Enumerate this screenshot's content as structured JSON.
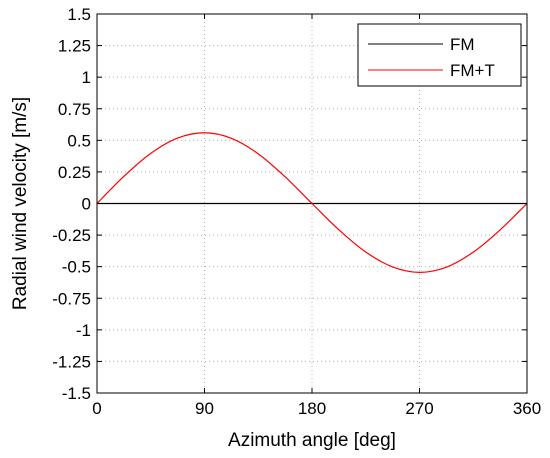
{
  "chart_data": {
    "type": "line",
    "title": "",
    "xlabel": "Azimuth angle [deg]",
    "ylabel": "Radial wind velocity [m/s]",
    "xlim": [
      0,
      360
    ],
    "ylim": [
      -1.5,
      1.5
    ],
    "xticks": [
      0,
      90,
      180,
      270,
      360
    ],
    "xtick_labels": [
      "0",
      "90",
      "180",
      "270",
      "360"
    ],
    "yticks": [
      1.5,
      1.25,
      1,
      0.75,
      0.5,
      0.25,
      0,
      -0.25,
      -0.5,
      -0.75,
      -1,
      -1.25,
      -1.5
    ],
    "ytick_labels": [
      "1.5",
      "1.25",
      "1",
      "0.75",
      "0.5",
      "0.25",
      "0",
      "-0.25",
      "-0.5",
      "-0.75",
      "-1",
      "-1.25",
      "-1.5"
    ],
    "grid": true,
    "legend": "top-right",
    "x": [
      0,
      22.5,
      45,
      67.5,
      90,
      112.5,
      135,
      157.5,
      180,
      202.5,
      225,
      247.5,
      270,
      292.5,
      315,
      337.5,
      360
    ],
    "series": [
      {
        "name": "FM",
        "color": "#000000",
        "values": [
          0,
          0,
          0,
          0,
          0,
          0,
          0,
          0,
          0,
          0,
          0,
          0,
          0,
          0,
          0,
          0,
          0
        ]
      },
      {
        "name": "FM+T",
        "color": "#ff0000",
        "values": [
          0,
          0.215,
          0.397,
          0.518,
          0.56,
          0.516,
          0.393,
          0.211,
          0,
          -0.208,
          -0.384,
          -0.502,
          -0.545,
          -0.504,
          -0.385,
          -0.209,
          0
        ]
      }
    ]
  }
}
